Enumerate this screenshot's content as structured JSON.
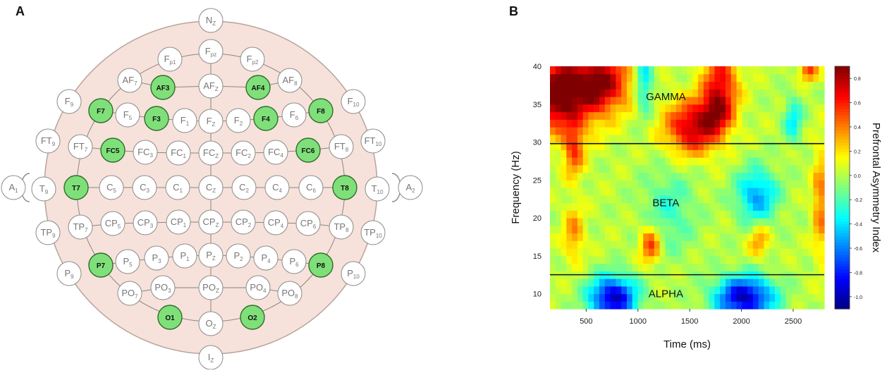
{
  "panels": {
    "a": {
      "letter": "A"
    },
    "b": {
      "letter": "B"
    }
  },
  "electrodes": [
    {
      "id": "Nz",
      "label": "N",
      "sub": "Z",
      "selected": false
    },
    {
      "id": "Fp1",
      "label": "F",
      "sub": "p1",
      "selected": false
    },
    {
      "id": "Fpz",
      "label": "F",
      "sub": "pz",
      "selected": false
    },
    {
      "id": "Fp2",
      "label": "F",
      "sub": "p2",
      "selected": false
    },
    {
      "id": "AF7",
      "label": "AF",
      "sub": "7",
      "selected": false
    },
    {
      "id": "AF3",
      "label": "AF3",
      "sub": "",
      "selected": true
    },
    {
      "id": "AFz",
      "label": "AF",
      "sub": "Z",
      "selected": false
    },
    {
      "id": "AF4",
      "label": "AF4",
      "sub": "",
      "selected": true
    },
    {
      "id": "AF8",
      "label": "AF",
      "sub": "8",
      "selected": false
    },
    {
      "id": "F9",
      "label": "F",
      "sub": "9",
      "selected": false
    },
    {
      "id": "F7",
      "label": "F7",
      "sub": "",
      "selected": true
    },
    {
      "id": "F5",
      "label": "F",
      "sub": "5",
      "selected": false
    },
    {
      "id": "F3",
      "label": "F3",
      "sub": "",
      "selected": true
    },
    {
      "id": "F1",
      "label": "F",
      "sub": "1",
      "selected": false
    },
    {
      "id": "Fz",
      "label": "F",
      "sub": "Z",
      "selected": false
    },
    {
      "id": "F2",
      "label": "F",
      "sub": "2",
      "selected": false
    },
    {
      "id": "F4",
      "label": "F4",
      "sub": "",
      "selected": true
    },
    {
      "id": "F6",
      "label": "F",
      "sub": "6",
      "selected": false
    },
    {
      "id": "F8",
      "label": "F8",
      "sub": "",
      "selected": true
    },
    {
      "id": "F10",
      "label": "F",
      "sub": "10",
      "selected": false
    },
    {
      "id": "FT9",
      "label": "FT",
      "sub": "9",
      "selected": false
    },
    {
      "id": "FT7",
      "label": "FT",
      "sub": "7",
      "selected": false
    },
    {
      "id": "FC5",
      "label": "FC5",
      "sub": "",
      "selected": true
    },
    {
      "id": "FC3",
      "label": "FC",
      "sub": "3",
      "selected": false
    },
    {
      "id": "FC1",
      "label": "FC",
      "sub": "1",
      "selected": false
    },
    {
      "id": "FCz",
      "label": "FC",
      "sub": "Z",
      "selected": false
    },
    {
      "id": "FC2",
      "label": "FC",
      "sub": "2",
      "selected": false
    },
    {
      "id": "FC4",
      "label": "FC",
      "sub": "4",
      "selected": false
    },
    {
      "id": "FC6",
      "label": "FC6",
      "sub": "",
      "selected": true
    },
    {
      "id": "FT8",
      "label": "FT",
      "sub": "8",
      "selected": false
    },
    {
      "id": "FT10",
      "label": "FT",
      "sub": "10",
      "selected": false
    },
    {
      "id": "A1",
      "label": "A",
      "sub": "1",
      "selected": false
    },
    {
      "id": "T9",
      "label": "T",
      "sub": "9",
      "selected": false
    },
    {
      "id": "T7",
      "label": "T7",
      "sub": "",
      "selected": true
    },
    {
      "id": "C5",
      "label": "C",
      "sub": "5",
      "selected": false
    },
    {
      "id": "C3",
      "label": "C",
      "sub": "3",
      "selected": false
    },
    {
      "id": "C1",
      "label": "C",
      "sub": "1",
      "selected": false
    },
    {
      "id": "Cz",
      "label": "C",
      "sub": "Z",
      "selected": false
    },
    {
      "id": "C2",
      "label": "C",
      "sub": "2",
      "selected": false
    },
    {
      "id": "C4",
      "label": "C",
      "sub": "4",
      "selected": false
    },
    {
      "id": "C6",
      "label": "C",
      "sub": "6",
      "selected": false
    },
    {
      "id": "T8",
      "label": "T8",
      "sub": "",
      "selected": true
    },
    {
      "id": "T10",
      "label": "T",
      "sub": "10",
      "selected": false
    },
    {
      "id": "A2",
      "label": "A",
      "sub": "2",
      "selected": false
    },
    {
      "id": "TP9",
      "label": "TP",
      "sub": "9",
      "selected": false
    },
    {
      "id": "TP7",
      "label": "TP",
      "sub": "7",
      "selected": false
    },
    {
      "id": "CP5",
      "label": "CP",
      "sub": "5",
      "selected": false
    },
    {
      "id": "CP3",
      "label": "CP",
      "sub": "3",
      "selected": false
    },
    {
      "id": "CP1",
      "label": "CP",
      "sub": "1",
      "selected": false
    },
    {
      "id": "CPz",
      "label": "CP",
      "sub": "Z",
      "selected": false
    },
    {
      "id": "CP2",
      "label": "CP",
      "sub": "2",
      "selected": false
    },
    {
      "id": "CP4",
      "label": "CP",
      "sub": "4",
      "selected": false
    },
    {
      "id": "CP6",
      "label": "CP",
      "sub": "6",
      "selected": false
    },
    {
      "id": "TP8",
      "label": "TP",
      "sub": "8",
      "selected": false
    },
    {
      "id": "TP10",
      "label": "TP",
      "sub": "10",
      "selected": false
    },
    {
      "id": "P9",
      "label": "P",
      "sub": "9",
      "selected": false
    },
    {
      "id": "P7",
      "label": "P7",
      "sub": "",
      "selected": true
    },
    {
      "id": "P5",
      "label": "P",
      "sub": "5",
      "selected": false
    },
    {
      "id": "P3",
      "label": "P",
      "sub": "3",
      "selected": false
    },
    {
      "id": "P1",
      "label": "P",
      "sub": "1",
      "selected": false
    },
    {
      "id": "Pz",
      "label": "P",
      "sub": "Z",
      "selected": false
    },
    {
      "id": "P2",
      "label": "P",
      "sub": "2",
      "selected": false
    },
    {
      "id": "P4",
      "label": "P",
      "sub": "4",
      "selected": false
    },
    {
      "id": "P6",
      "label": "P",
      "sub": "6",
      "selected": false
    },
    {
      "id": "P8",
      "label": "P8",
      "sub": "",
      "selected": true
    },
    {
      "id": "P10",
      "label": "P",
      "sub": "10",
      "selected": false
    },
    {
      "id": "PO7",
      "label": "PO",
      "sub": "7",
      "selected": false
    },
    {
      "id": "PO3",
      "label": "PO",
      "sub": "3",
      "selected": false
    },
    {
      "id": "POz",
      "label": "PO",
      "sub": "Z",
      "selected": false
    },
    {
      "id": "PO4",
      "label": "PO",
      "sub": "4",
      "selected": false
    },
    {
      "id": "PO8",
      "label": "PO",
      "sub": "8",
      "selected": false
    },
    {
      "id": "O1",
      "label": "O1",
      "sub": "",
      "selected": true
    },
    {
      "id": "Oz",
      "label": "O",
      "sub": "Z",
      "selected": false
    },
    {
      "id": "O2",
      "label": "O2",
      "sub": "",
      "selected": true
    },
    {
      "id": "Iz",
      "label": "I",
      "sub": "Z",
      "selected": false
    }
  ],
  "chart_data": {
    "type": "heatmap",
    "xlabel": "Time (ms)",
    "ylabel": "Frequency (Hz)",
    "xlim": [
      150,
      2800
    ],
    "ylim": [
      8,
      40
    ],
    "x_ticks": [
      500,
      1000,
      1500,
      2000,
      2500
    ],
    "y_ticks": [
      10,
      15,
      20,
      25,
      30,
      35,
      40
    ],
    "band_boundaries_hz": [
      12.5,
      29.8
    ],
    "band_labels": [
      {
        "text": "GAMMA",
        "time_ms": 1270,
        "freq_hz": 36
      },
      {
        "text": "BETA",
        "time_ms": 1270,
        "freq_hz": 22
      },
      {
        "text": "ALPHA",
        "time_ms": 1270,
        "freq_hz": 10
      }
    ],
    "colorbar": {
      "title": "Prefrontal Asymmetry Index",
      "min": -1.1,
      "max": 0.9,
      "ticks": [
        0.8,
        0.6,
        0.4,
        0.2,
        0.0,
        -0.2,
        -0.4,
        -0.6,
        -0.8,
        -1.0
      ],
      "tick_labels": [
        "0.8",
        "0.6",
        "0.4",
        "0.2",
        "0.0",
        "-0.2",
        "-0.4",
        "-0.6",
        "-0.8",
        "-1.0"
      ]
    },
    "field_features": [
      {
        "kind": "max",
        "time_ms": 400,
        "freq_hz": 37,
        "value": 0.75,
        "spread_ms": 230,
        "spread_hz": 3.5
      },
      {
        "kind": "max",
        "time_ms": 180,
        "freq_hz": 36,
        "value": 0.55,
        "spread_ms": 120,
        "spread_hz": 3
      },
      {
        "kind": "max",
        "time_ms": 700,
        "freq_hz": 38,
        "value": 0.55,
        "spread_ms": 180,
        "spread_hz": 2.5
      },
      {
        "kind": "max",
        "time_ms": 1530,
        "freq_hz": 32,
        "value": 0.75,
        "spread_ms": 190,
        "spread_hz": 2.5
      },
      {
        "kind": "max",
        "time_ms": 1800,
        "freq_hz": 38,
        "value": 0.6,
        "spread_ms": 120,
        "spread_hz": 3
      },
      {
        "kind": "max",
        "time_ms": 1760,
        "freq_hz": 34,
        "value": 0.45,
        "spread_ms": 110,
        "spread_hz": 2
      },
      {
        "kind": "max",
        "time_ms": 2650,
        "freq_hz": 39.5,
        "value": 0.5,
        "spread_ms": 60,
        "spread_hz": 1
      },
      {
        "kind": "max",
        "time_ms": 380,
        "freq_hz": 29,
        "value": 0.5,
        "spread_ms": 70,
        "spread_hz": 2.5
      },
      {
        "kind": "max",
        "time_ms": 380,
        "freq_hz": 18,
        "value": 0.35,
        "spread_ms": 70,
        "spread_hz": 2.5
      },
      {
        "kind": "max",
        "time_ms": 1120,
        "freq_hz": 16.5,
        "value": 0.55,
        "spread_ms": 70,
        "spread_hz": 1.8
      },
      {
        "kind": "max",
        "time_ms": 2170,
        "freq_hz": 17,
        "value": 0.35,
        "spread_ms": 70,
        "spread_hz": 1.5
      },
      {
        "kind": "max",
        "time_ms": 2760,
        "freq_hz": 22,
        "value": 0.4,
        "spread_ms": 50,
        "spread_hz": 5
      },
      {
        "kind": "min",
        "time_ms": 760,
        "freq_hz": 9.5,
        "value": -1.0,
        "spread_ms": 160,
        "spread_hz": 2
      },
      {
        "kind": "min",
        "time_ms": 2030,
        "freq_hz": 9.5,
        "value": -1.0,
        "spread_ms": 200,
        "spread_hz": 2
      },
      {
        "kind": "min",
        "time_ms": 2150,
        "freq_hz": 23,
        "value": -0.55,
        "spread_ms": 140,
        "spread_hz": 2.5
      },
      {
        "kind": "min",
        "time_ms": 1060,
        "freq_hz": 38,
        "value": -0.45,
        "spread_ms": 60,
        "spread_hz": 3
      },
      {
        "kind": "min",
        "time_ms": 2500,
        "freq_hz": 33,
        "value": -0.4,
        "spread_ms": 60,
        "spread_hz": 2
      },
      {
        "kind": "min",
        "time_ms": 1300,
        "freq_hz": 21,
        "value": -0.25,
        "spread_ms": 180,
        "spread_hz": 4
      }
    ],
    "colors": {
      "scale": [
        "#00007f",
        "#0000ff",
        "#007fff",
        "#00ffff",
        "#7fff7f",
        "#ffff00",
        "#ff7f00",
        "#ff0000",
        "#7f0000"
      ],
      "head_fill": "#f6e2da",
      "selected_electrode": "#7fe07a"
    }
  }
}
